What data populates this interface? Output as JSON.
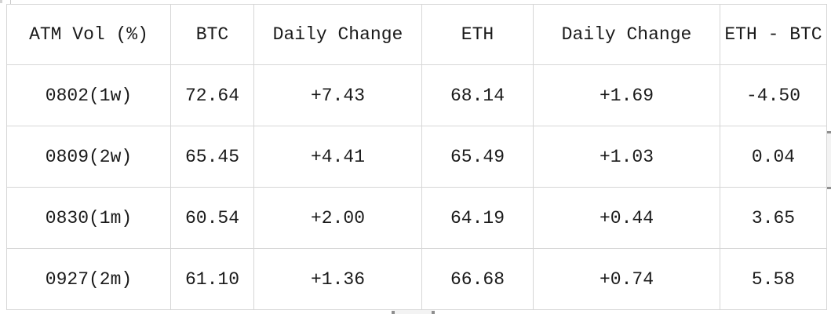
{
  "theme": {
    "background": "#ffffff",
    "grid_color": "#d6d6d6",
    "text_color": "#1a1a1a",
    "scrollbar_thumb": "#f3f3f3",
    "scrollbar_cap": "#8f8f8f"
  },
  "table": {
    "columns": [
      "ATM Vol (%)",
      "BTC",
      "Daily Change",
      "ETH",
      "Daily Change",
      "ETH - BTC"
    ],
    "rows": [
      {
        "cells": [
          "0802(1w)",
          "72.64",
          "+7.43",
          "68.14",
          "+1.69",
          "-4.50"
        ]
      },
      {
        "cells": [
          "0809(2w)",
          "65.45",
          "+4.41",
          "65.49",
          "+1.03",
          "0.04"
        ]
      },
      {
        "cells": [
          "0830(1m)",
          "60.54",
          "+2.00",
          "64.19",
          "+0.44",
          "3.65"
        ]
      },
      {
        "cells": [
          "0927(2m)",
          "61.10",
          "+1.36",
          "66.68",
          "+0.74",
          "5.58"
        ]
      }
    ]
  }
}
